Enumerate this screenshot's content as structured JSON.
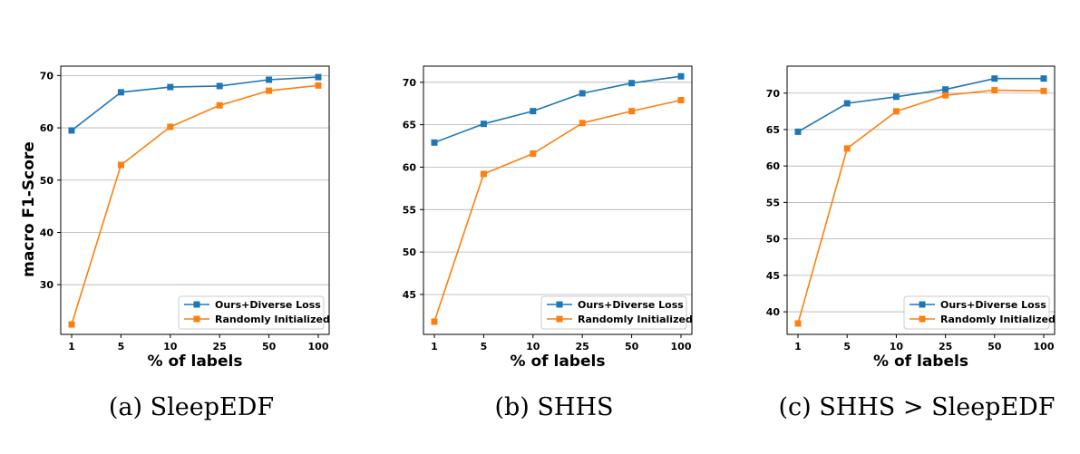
{
  "colors": {
    "series1": "#1f77b4",
    "series2": "#ff7f0e",
    "grid": "#b0b0b0"
  },
  "chart_data": [
    {
      "type": "line",
      "caption": "(a) SleepEDF",
      "xlabel": "% of labels",
      "ylabel": "macro F1-Score",
      "categories": [
        "1",
        "5",
        "10",
        "25",
        "50",
        "100"
      ],
      "yticks": [
        30,
        40,
        50,
        60,
        70
      ],
      "ylim": [
        20.5,
        71.8
      ],
      "grid": "horizontal",
      "legend_position": "lower right",
      "series": [
        {
          "name": "Ours+Diverse Loss",
          "values": [
            59.5,
            66.8,
            67.8,
            68.0,
            69.2,
            69.7
          ]
        },
        {
          "name": "Randomly Initialized",
          "values": [
            22.4,
            52.9,
            60.2,
            64.3,
            67.1,
            68.1
          ]
        }
      ]
    },
    {
      "type": "line",
      "caption": "(b) SHHS",
      "xlabel": "% of labels",
      "ylabel": "",
      "categories": [
        "1",
        "5",
        "10",
        "25",
        "50",
        "100"
      ],
      "yticks": [
        45,
        50,
        55,
        60,
        65,
        70
      ],
      "ylim": [
        40.3,
        71.9
      ],
      "grid": "horizontal",
      "legend_position": "lower right",
      "series": [
        {
          "name": "Ours+Diverse Loss",
          "values": [
            62.9,
            65.1,
            66.6,
            68.7,
            69.9,
            70.7
          ]
        },
        {
          "name": "Randomly Initialized",
          "values": [
            41.8,
            59.2,
            61.6,
            65.2,
            66.6,
            67.9
          ]
        }
      ]
    },
    {
      "type": "line",
      "caption": "(c) SHHS > SleepEDF",
      "xlabel": "% of labels",
      "ylabel": "",
      "categories": [
        "1",
        "5",
        "10",
        "25",
        "50",
        "100"
      ],
      "yticks": [
        40,
        45,
        50,
        55,
        60,
        65,
        70
      ],
      "ylim": [
        36.9,
        73.7
      ],
      "grid": "horizontal",
      "legend_position": "lower right",
      "series": [
        {
          "name": "Ours+Diverse Loss",
          "values": [
            64.7,
            68.6,
            69.5,
            70.5,
            72.0,
            72.0
          ]
        },
        {
          "name": "Randomly Initialized",
          "values": [
            38.4,
            62.4,
            67.5,
            69.7,
            70.4,
            70.3
          ]
        }
      ]
    }
  ]
}
